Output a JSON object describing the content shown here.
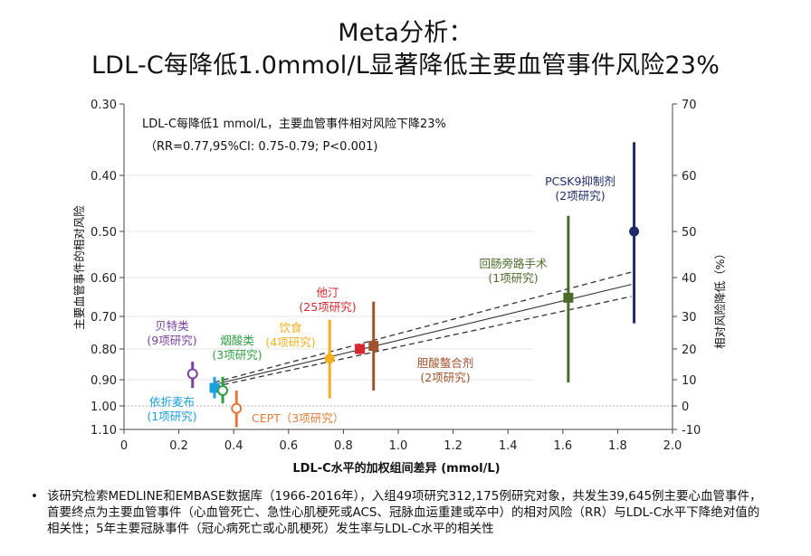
{
  "title": {
    "line1": "Meta分析：",
    "line2": "LDL-C每降低1.0mmol/L显著降低主要血管事件风险23%"
  },
  "bullet": {
    "marker": "•",
    "text": "该研究检索MEDLINE和EMBASE数据库（1966-2016年），入组49项研究312,175例研究对象，共发生39,645例主要心血管事件，首要终点为主要血管事件（心血管死亡、急性心肌梗死或ACS、冠脉血运重建或卒中）的相对风险（RR）与LDL-C水平下降绝对值的相关性；5年主要冠脉事件（冠心病死亡或心肌梗死）发生率与LDL-C水平的相关性"
  },
  "chart_data": {
    "type": "scatter",
    "xlabel": "LDL-C水平的加权组间差异 (mmol/L)",
    "ylabel": "主要血管事件的相对风险",
    "ylabel_right": "相对风险降低（%）",
    "xlim": [
      0,
      2.0
    ],
    "ylim": [
      0.3,
      1.1
    ],
    "y_scale": "log",
    "x_ticks": [
      "0",
      "0.2",
      "0.4",
      "0.6",
      "0.8",
      "1.0",
      "1.2",
      "1.4",
      "1.6",
      "1.8",
      "2.0"
    ],
    "y_ticks": [
      0.3,
      0.4,
      0.5,
      0.6,
      0.7,
      0.8,
      0.9,
      1.0,
      1.1
    ],
    "y_tick_labels": [
      "0.30",
      "0.40",
      "0.50",
      "0.60",
      "0.70",
      "0.80",
      "0.90",
      "1.00",
      "1.10"
    ],
    "y2_ticks": [
      70,
      60,
      50,
      40,
      30,
      20,
      10,
      0,
      -10
    ],
    "y2_tick_labels": [
      "70",
      "60",
      "50",
      "40",
      "30",
      "20",
      "10",
      "0",
      "-10"
    ],
    "annotation_line1": "LDL-C每降低1 mmol/L，主要血管事件相对风险下降23%",
    "annotation_line2": "（RR=0.77,95%CI: 0.75-0.79; P<0.001)",
    "regression": {
      "rr_per_mmol": 0.77,
      "ci": [
        0.75,
        0.79
      ],
      "x_range": [
        0.33,
        1.85
      ]
    },
    "reference_line": 1.0,
    "grid": "horizontal",
    "points": [
      {
        "name": "贝特类",
        "sub": "(9项研究)",
        "x": 0.25,
        "rr": 0.88,
        "lo": 0.84,
        "hi": 0.93,
        "color": "#7b3f9e",
        "marker": "circle-open"
      },
      {
        "name": "依折麦布",
        "sub": "(1项研究)",
        "x": 0.33,
        "rr": 0.93,
        "lo": 0.89,
        "hi": 0.97,
        "color": "#1ba0dc",
        "marker": "square"
      },
      {
        "name": "烟酸类",
        "sub": "(3项研究)",
        "x": 0.36,
        "rr": 0.94,
        "lo": 0.89,
        "hi": 0.99,
        "color": "#2f9e44",
        "marker": "circle-open"
      },
      {
        "name": "CEPT",
        "sub": "（3项研究）",
        "x": 0.41,
        "rr": 1.01,
        "lo": 0.94,
        "hi": 1.09,
        "color": "#e07b39",
        "marker": "circle-open"
      },
      {
        "name": "饮食",
        "sub": "(4项研究)",
        "x": 0.75,
        "rr": 0.83,
        "lo": 0.71,
        "hi": 0.97,
        "color": "#f2b01e",
        "marker": "circle"
      },
      {
        "name": "他汀",
        "sub": "(25项研究)",
        "x": 0.86,
        "rr": 0.8,
        "lo": 0.79,
        "hi": 0.81,
        "color": "#d9262c",
        "marker": "square"
      },
      {
        "name": "胆酸螯合剂",
        "sub": "(2项研究)",
        "x": 0.91,
        "rr": 0.79,
        "lo": 0.66,
        "hi": 0.94,
        "color": "#a0522d",
        "marker": "square"
      },
      {
        "name": "回肠旁路手术",
        "sub": "(1项研究)",
        "x": 1.62,
        "rr": 0.65,
        "lo": 0.47,
        "hi": 0.91,
        "color": "#4d6b2a",
        "marker": "square"
      },
      {
        "name": "PCSK9抑制剂",
        "sub": "(2项研究)",
        "x": 1.86,
        "rr": 0.5,
        "lo": 0.35,
        "hi": 0.72,
        "color": "#1f2a6b",
        "marker": "circle"
      }
    ]
  }
}
